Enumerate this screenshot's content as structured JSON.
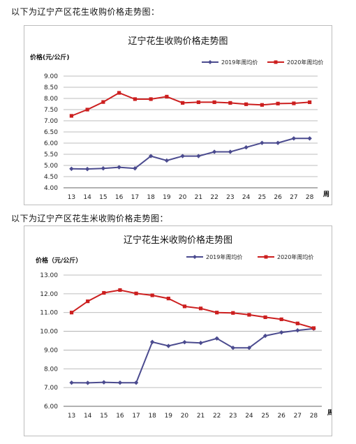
{
  "intro_1": "以下为辽宁产区花生收购价格走势图：",
  "intro_2": "以下为辽宁产区花生米收购价格走势图：",
  "colors": {
    "s2019": "#4b4b8f",
    "s2020": "#cc1f1f",
    "grid": "#a8a8a8",
    "axis": "#666666"
  },
  "chart_data": [
    {
      "type": "line",
      "title": "辽宁花生收购价格走势图",
      "ylabel": "价格(元/公斤)",
      "xlabel": "周",
      "ylim": [
        4.0,
        9.0
      ],
      "ytick_step": 0.5,
      "yticks": [
        "4.00",
        "4.50",
        "5.00",
        "5.50",
        "6.00",
        "6.50",
        "7.00",
        "7.50",
        "8.00",
        "8.50",
        "9.00"
      ],
      "categories": [
        "13",
        "14",
        "15",
        "16",
        "17",
        "18",
        "19",
        "20",
        "21",
        "22",
        "23",
        "24",
        "25",
        "26",
        "27",
        "28"
      ],
      "legend_position": "top-right",
      "grid": true,
      "series": [
        {
          "name": "2019年周均价",
          "values": [
            4.85,
            4.84,
            4.87,
            4.92,
            4.87,
            5.42,
            5.22,
            5.42,
            5.42,
            5.61,
            5.61,
            5.81,
            6.01,
            6.01,
            6.21,
            6.21
          ]
        },
        {
          "name": "2020年周均价",
          "values": [
            7.22,
            7.5,
            7.84,
            8.25,
            7.97,
            7.97,
            8.08,
            7.8,
            7.83,
            7.83,
            7.8,
            7.74,
            7.71,
            7.77,
            7.78,
            7.83
          ]
        }
      ]
    },
    {
      "type": "line",
      "title": "辽宁花生米收购价格走势图",
      "ylabel": "价格（元/公斤）",
      "xlabel": "周",
      "ylim": [
        6.0,
        13.0
      ],
      "ytick_step": 1.0,
      "yticks": [
        "6.00",
        "7.00",
        "8.00",
        "9.00",
        "10.00",
        "11.00",
        "12.00",
        "13.00"
      ],
      "categories": [
        "13",
        "14",
        "15",
        "16",
        "17",
        "18",
        "19",
        "20",
        "21",
        "22",
        "23",
        "24",
        "25",
        "26",
        "27",
        "28"
      ],
      "legend_position": "top-right",
      "grid": true,
      "series": [
        {
          "name": "2019年周均价",
          "values": [
            7.26,
            7.25,
            7.28,
            7.26,
            7.26,
            9.43,
            9.22,
            9.42,
            9.38,
            9.62,
            9.12,
            9.12,
            9.76,
            9.94,
            10.05,
            10.14
          ]
        },
        {
          "name": "2020年周均价",
          "values": [
            11.0,
            11.6,
            12.05,
            12.2,
            12.02,
            11.92,
            11.75,
            11.33,
            11.22,
            11.0,
            10.98,
            10.88,
            10.75,
            10.64,
            10.42,
            10.17
          ]
        }
      ]
    }
  ]
}
